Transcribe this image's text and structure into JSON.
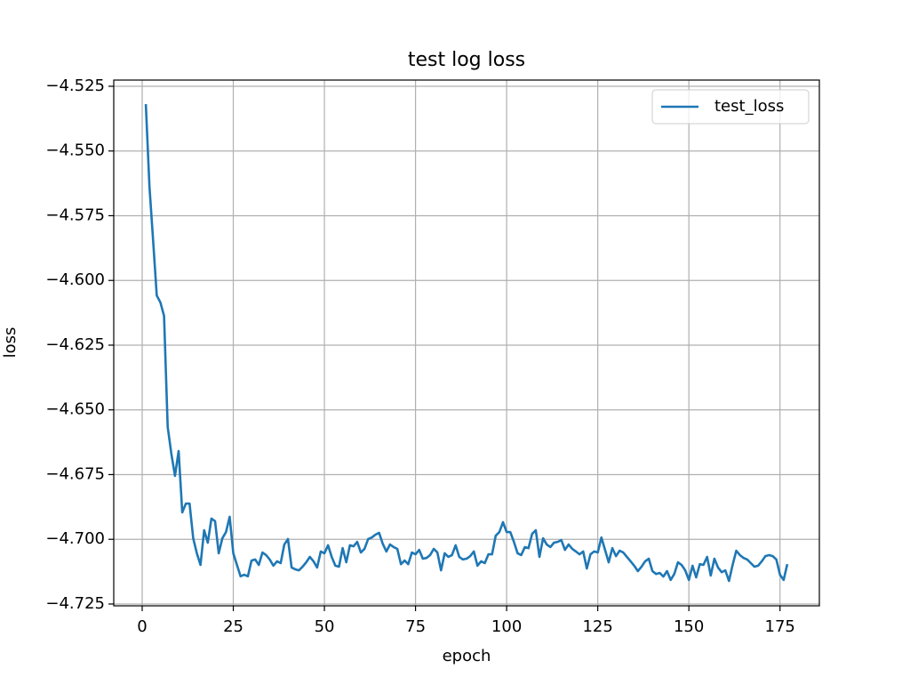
{
  "chart_data": {
    "type": "line",
    "title": "test log loss",
    "xlabel": "epoch",
    "ylabel": "loss",
    "x": [
      1,
      2,
      3,
      4,
      5,
      6,
      7,
      8,
      9,
      10,
      11,
      12,
      13,
      14,
      15,
      16,
      17,
      18,
      19,
      20,
      21,
      22,
      23,
      24,
      25,
      26,
      27,
      28,
      29,
      30,
      31,
      32,
      33,
      34,
      35,
      36,
      37,
      38,
      39,
      40,
      41,
      42,
      43,
      44,
      45,
      46,
      47,
      48,
      49,
      50,
      51,
      52,
      53,
      54,
      55,
      56,
      57,
      58,
      59,
      60,
      61,
      62,
      63,
      64,
      65,
      66,
      67,
      68,
      69,
      70,
      71,
      72,
      73,
      74,
      75,
      76,
      77,
      78,
      79,
      80,
      81,
      82,
      83,
      84,
      85,
      86,
      87,
      88,
      89,
      90,
      91,
      92,
      93,
      94,
      95,
      96,
      97,
      98,
      99,
      100,
      101,
      102,
      103,
      104,
      105,
      106,
      107,
      108,
      109,
      110,
      111,
      112,
      113,
      114,
      115,
      116,
      117,
      118,
      119,
      120,
      121,
      122,
      123,
      124,
      125,
      126,
      127,
      128,
      129,
      130,
      131,
      132,
      133,
      134,
      135,
      136,
      137,
      138,
      139,
      140,
      141,
      142,
      143,
      144,
      145,
      146,
      147,
      148,
      149,
      150,
      151,
      152,
      153,
      154,
      155,
      156,
      157,
      158,
      159,
      160,
      161,
      162,
      163,
      164,
      165,
      166,
      167,
      168,
      169,
      170,
      171,
      172,
      173,
      174,
      175,
      176,
      177
    ],
    "series": [
      {
        "name": "test_loss",
        "color": "#1f77b4",
        "values": [
          -4.5319,
          -4.5638,
          -4.5845,
          -4.6058,
          -4.6085,
          -4.6137,
          -4.6566,
          -4.6669,
          -4.6755,
          -4.6659,
          -4.6896,
          -4.6862,
          -4.6862,
          -4.6996,
          -4.7054,
          -4.7099,
          -4.6965,
          -4.7013,
          -4.692,
          -4.693,
          -4.7054,
          -4.6996,
          -4.6972,
          -4.6913,
          -4.7054,
          -4.7099,
          -4.7143,
          -4.7137,
          -4.7143,
          -4.7082,
          -4.7078,
          -4.7099,
          -4.7051,
          -4.7061,
          -4.7078,
          -4.7102,
          -4.7085,
          -4.7092,
          -4.702,
          -4.6999,
          -4.7109,
          -4.7116,
          -4.712,
          -4.7106,
          -4.7089,
          -4.7068,
          -4.7085,
          -4.7109,
          -4.7047,
          -4.7054,
          -4.7023,
          -4.7068,
          -4.7102,
          -4.7106,
          -4.7034,
          -4.7089,
          -4.7023,
          -4.7027,
          -4.701,
          -4.7051,
          -4.7037,
          -4.6999,
          -4.6993,
          -4.6982,
          -4.6975,
          -4.7017,
          -4.7047,
          -4.702,
          -4.703,
          -4.7037,
          -4.7096,
          -4.7082,
          -4.7096,
          -4.7051,
          -4.7058,
          -4.7041,
          -4.7075,
          -4.7072,
          -4.7061,
          -4.7037,
          -4.7051,
          -4.712,
          -4.7054,
          -4.7068,
          -4.7061,
          -4.7023,
          -4.7068,
          -4.7078,
          -4.7075,
          -4.7065,
          -4.7047,
          -4.7102,
          -4.7085,
          -4.7092,
          -4.7058,
          -4.7058,
          -4.6986,
          -4.6972,
          -4.6934,
          -4.6972,
          -4.6972,
          -4.701,
          -4.7054,
          -4.7061,
          -4.703,
          -4.7034,
          -4.6979,
          -4.6965,
          -4.7068,
          -4.6996,
          -4.702,
          -4.703,
          -4.7013,
          -4.701,
          -4.7003,
          -4.7041,
          -4.702,
          -4.7037,
          -4.7047,
          -4.7058,
          -4.7047,
          -4.7113,
          -4.7058,
          -4.7047,
          -4.7051,
          -4.6993,
          -4.7041,
          -4.7089,
          -4.7034,
          -4.7065,
          -4.7044,
          -4.7051,
          -4.7068,
          -4.7085,
          -4.7102,
          -4.7123,
          -4.7106,
          -4.7085,
          -4.7075,
          -4.7123,
          -4.7134,
          -4.713,
          -4.7144,
          -4.7123,
          -4.7157,
          -4.7134,
          -4.7089,
          -4.7099,
          -4.712,
          -4.7157,
          -4.7102,
          -4.7147,
          -4.7096,
          -4.7099,
          -4.7068,
          -4.714,
          -4.7075,
          -4.7109,
          -4.7127,
          -4.712,
          -4.7161,
          -4.7099,
          -4.7044,
          -4.7061,
          -4.7072,
          -4.7078,
          -4.7092,
          -4.7106,
          -4.7102,
          -4.7085,
          -4.7065,
          -4.7061,
          -4.7065,
          -4.7078,
          -4.7137,
          -4.7157,
          -4.7096
        ]
      }
    ],
    "xlim": [
      -7.8,
      185.8
    ],
    "ylim": [
      -4.7257,
      -4.5226
    ],
    "xticks": [
      0,
      25,
      50,
      75,
      100,
      125,
      150,
      175
    ],
    "yticks": [
      {
        "value": -4.725,
        "label": "−4.725"
      },
      {
        "value": -4.7,
        "label": "−4.700"
      },
      {
        "value": -4.675,
        "label": "−4.675"
      },
      {
        "value": -4.65,
        "label": "−4.650"
      },
      {
        "value": -4.625,
        "label": "−4.625"
      },
      {
        "value": -4.6,
        "label": "−4.600"
      },
      {
        "value": -4.575,
        "label": "−4.575"
      },
      {
        "value": -4.55,
        "label": "−4.550"
      },
      {
        "value": -4.525,
        "label": "−4.525"
      }
    ],
    "grid": true,
    "legend": "upper right"
  }
}
